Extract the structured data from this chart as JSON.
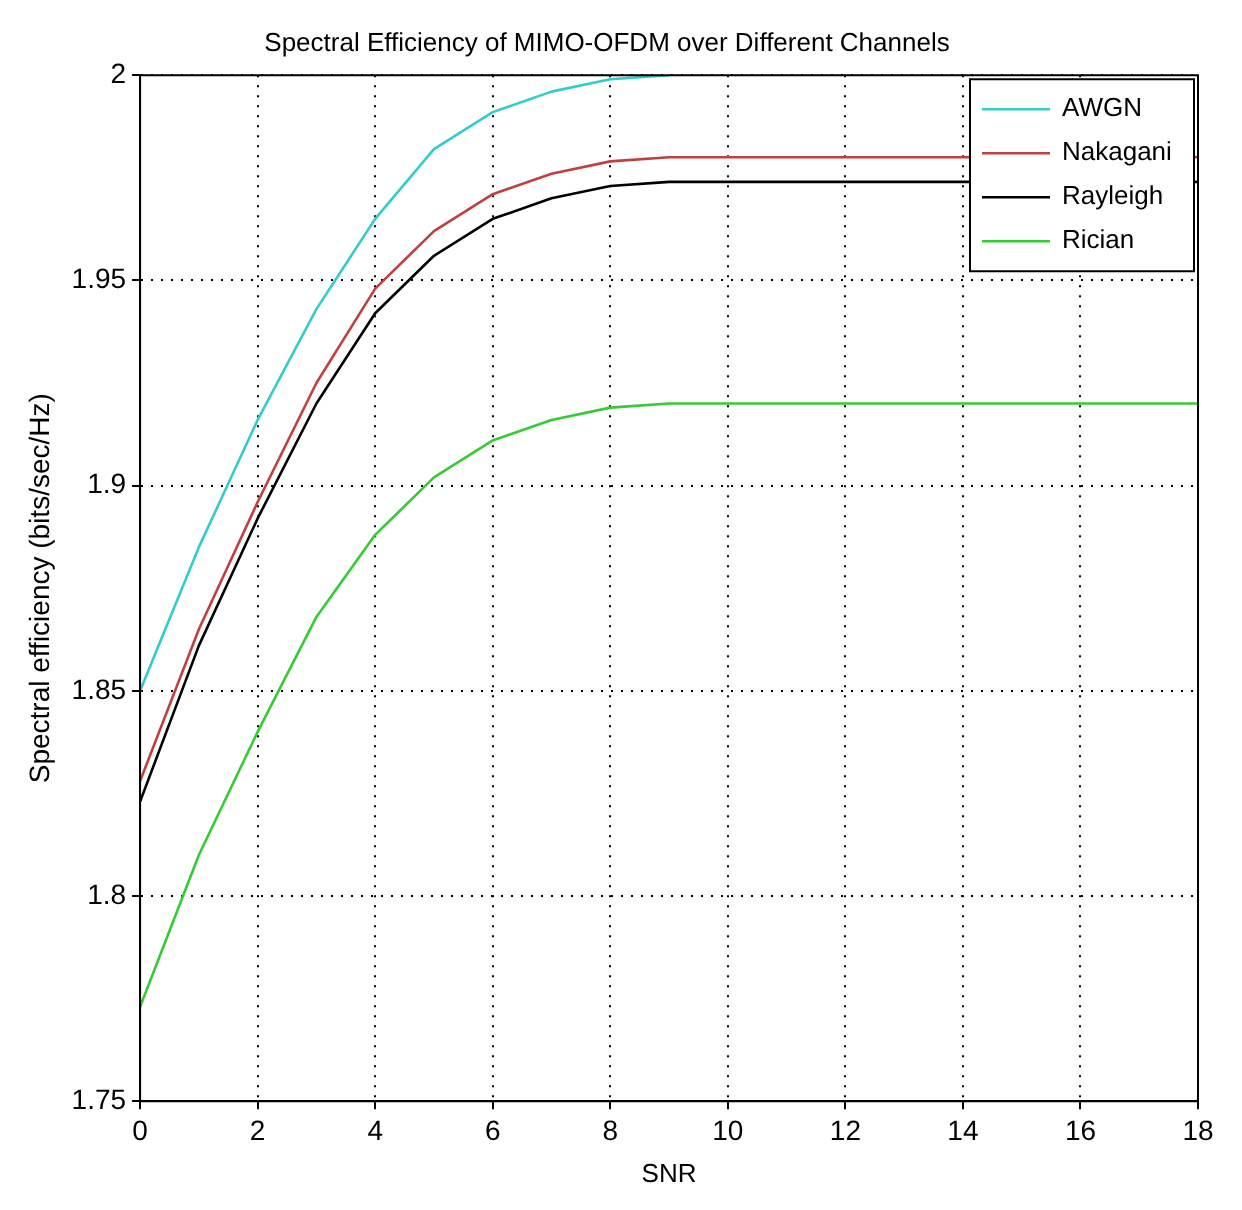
{
  "chart_data": {
    "type": "line",
    "title": "Spectral Efficiency of MIMO-OFDM over Different Channels",
    "xlabel": "SNR",
    "ylabel": "Spectral efficiency (bits/sec/Hz)",
    "xlim": [
      0,
      18
    ],
    "xticks": [
      0,
      2,
      4,
      6,
      8,
      10,
      12,
      14,
      16,
      18
    ],
    "ylim": [
      1.75,
      2
    ],
    "yticks": [
      1.75,
      1.8,
      1.85,
      1.9,
      1.95,
      2
    ],
    "grid": true,
    "legend": "top right",
    "marker": "none",
    "line_style": "solid",
    "series": [
      {
        "name": "AWGN",
        "color": "#33cccc",
        "x": [
          0,
          1,
          2,
          3,
          4,
          5,
          6,
          7,
          8,
          9
        ],
        "values": [
          1.85,
          1.885,
          1.916,
          1.943,
          1.965,
          1.982,
          1.991,
          1.996,
          1.999,
          2.0
        ]
      },
      {
        "name": "Nakagani",
        "color": "#c04040",
        "x": [
          0,
          1,
          2,
          3,
          4,
          5,
          6,
          7,
          8,
          9,
          18
        ],
        "values": [
          1.828,
          1.865,
          1.896,
          1.925,
          1.948,
          1.962,
          1.971,
          1.976,
          1.979,
          1.98,
          1.98
        ]
      },
      {
        "name": "Rayleigh",
        "color": "#000000",
        "x": [
          0,
          1,
          2,
          3,
          4,
          5,
          6,
          7,
          8,
          9,
          18
        ],
        "values": [
          1.823,
          1.861,
          1.892,
          1.92,
          1.942,
          1.956,
          1.965,
          1.97,
          1.973,
          1.974,
          1.974
        ]
      },
      {
        "name": "Rician",
        "color": "#33cc33",
        "x": [
          0,
          1,
          2,
          3,
          4,
          5,
          6,
          7,
          8,
          9,
          18
        ],
        "values": [
          1.773,
          1.81,
          1.84,
          1.868,
          1.888,
          1.902,
          1.911,
          1.916,
          1.919,
          1.92,
          1.92
        ]
      }
    ]
  }
}
